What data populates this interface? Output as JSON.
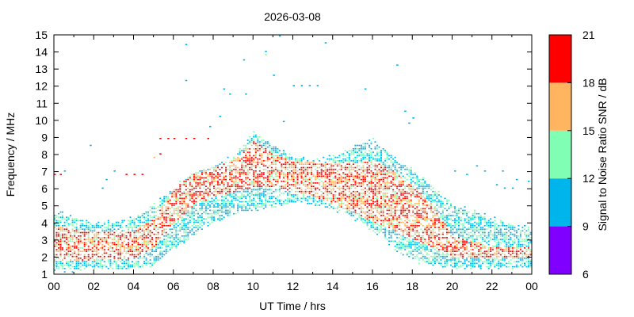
{
  "chart_data": {
    "type": "heatmap",
    "title": "2026-03-08",
    "xlabel": "UT Time / hrs",
    "ylabel": "Frequency / MHz",
    "xlim": [
      0,
      24
    ],
    "ylim": [
      1,
      15
    ],
    "x_ticks": [
      "00",
      "02",
      "04",
      "06",
      "08",
      "10",
      "12",
      "14",
      "16",
      "18",
      "20",
      "22",
      "00"
    ],
    "y_ticks": [
      "1",
      "2",
      "3",
      "4",
      "5",
      "6",
      "7",
      "8",
      "9",
      "10",
      "11",
      "12",
      "13",
      "14",
      "15"
    ],
    "colorbar": {
      "label": "Signal to Noise Ratio SNR / dB",
      "ticks": [
        "6",
        "9",
        "12",
        "15",
        "18",
        "21"
      ],
      "bands": [
        {
          "from": 6,
          "to": 9,
          "color": "#8000ff"
        },
        {
          "from": 9,
          "to": 12,
          "color": "#00b4ec"
        },
        {
          "from": 12,
          "to": 15,
          "color": "#80ffb4"
        },
        {
          "from": 15,
          "to": 18,
          "color": "#ffb460"
        },
        {
          "from": 18,
          "to": 21,
          "color": "#ff0000"
        }
      ]
    },
    "lower_envelope_mhz": [
      [
        0,
        1.2
      ],
      [
        2,
        1.3
      ],
      [
        4,
        1.3
      ],
      [
        5,
        1.6
      ],
      [
        6,
        2.5
      ],
      [
        7,
        3.3
      ],
      [
        8,
        4.0
      ],
      [
        9,
        4.5
      ],
      [
        10,
        4.8
      ],
      [
        11,
        5.0
      ],
      [
        12,
        5.2
      ],
      [
        13,
        5.0
      ],
      [
        14,
        4.8
      ],
      [
        15,
        4.3
      ],
      [
        16,
        3.6
      ],
      [
        17,
        2.6
      ],
      [
        18,
        1.8
      ],
      [
        20,
        1.4
      ],
      [
        22,
        1.4
      ],
      [
        24,
        1.4
      ]
    ],
    "upper_envelope_mhz": [
      [
        0,
        4.6
      ],
      [
        2,
        3.9
      ],
      [
        4,
        4.2
      ],
      [
        5,
        5.0
      ],
      [
        6,
        6.0
      ],
      [
        7,
        6.9
      ],
      [
        8,
        7.3
      ],
      [
        9,
        7.8
      ],
      [
        10,
        9.2
      ],
      [
        11,
        8.5
      ],
      [
        12,
        7.8
      ],
      [
        13,
        7.6
      ],
      [
        14,
        7.8
      ],
      [
        15,
        8.4
      ],
      [
        16,
        8.8
      ],
      [
        17,
        7.8
      ],
      [
        18,
        7.0
      ],
      [
        19,
        6.0
      ],
      [
        20,
        5.0
      ],
      [
        22,
        4.2
      ],
      [
        24,
        3.6
      ]
    ],
    "max_snr_band_mhz": [
      [
        0,
        1.8,
        3.8
      ],
      [
        2,
        1.8,
        3.4
      ],
      [
        4,
        1.9,
        3.5
      ],
      [
        5,
        2.5,
        4.2
      ],
      [
        6,
        4.0,
        6.0
      ],
      [
        7,
        5.0,
        6.8
      ],
      [
        8,
        5.5,
        7.2
      ],
      [
        9,
        5.8,
        7.6
      ],
      [
        10,
        6.0,
        8.8
      ],
      [
        11,
        6.0,
        8.0
      ],
      [
        12,
        5.8,
        7.6
      ],
      [
        13,
        5.5,
        7.5
      ],
      [
        14,
        5.0,
        7.4
      ],
      [
        15,
        4.6,
        7.4
      ],
      [
        16,
        4.0,
        7.6
      ],
      [
        17,
        3.5,
        7.0
      ],
      [
        18,
        3.0,
        6.2
      ],
      [
        19,
        2.5,
        5.0
      ],
      [
        20,
        2.0,
        3.2
      ],
      [
        22,
        2.0,
        2.6
      ],
      [
        24,
        2.0,
        2.6
      ]
    ],
    "scatter_points": [
      [
        0.0,
        6.8,
        18
      ],
      [
        0.3,
        6.8,
        18
      ],
      [
        0.5,
        7.0,
        10
      ],
      [
        1.8,
        8.5,
        10
      ],
      [
        2.4,
        6.0,
        10
      ],
      [
        2.6,
        6.5,
        10
      ],
      [
        3.0,
        7.0,
        10
      ],
      [
        3.6,
        6.8,
        18
      ],
      [
        4.0,
        6.8,
        18
      ],
      [
        4.4,
        6.8,
        18
      ],
      [
        5.0,
        7.8,
        15
      ],
      [
        5.3,
        8.0,
        18
      ],
      [
        5.3,
        8.9,
        18
      ],
      [
        5.7,
        8.9,
        18
      ],
      [
        6.0,
        8.9,
        18
      ],
      [
        6.6,
        8.9,
        18
      ],
      [
        7.0,
        8.9,
        18
      ],
      [
        7.7,
        8.9,
        18
      ],
      [
        6.6,
        14.4,
        10
      ],
      [
        6.6,
        12.3,
        10
      ],
      [
        8.5,
        11.8,
        10
      ],
      [
        8.8,
        11.5,
        10
      ],
      [
        9.5,
        13.5,
        10
      ],
      [
        9.6,
        11.5,
        10
      ],
      [
        10.6,
        13.8,
        13
      ],
      [
        10.6,
        14.0,
        10
      ],
      [
        11.3,
        14.9,
        10
      ],
      [
        11.0,
        12.6,
        10
      ],
      [
        12.0,
        12.0,
        10
      ],
      [
        12.4,
        12.0,
        10
      ],
      [
        12.8,
        12.0,
        10
      ],
      [
        13.2,
        12.0,
        10
      ],
      [
        13.6,
        14.5,
        10
      ],
      [
        15.6,
        11.8,
        10
      ],
      [
        17.2,
        13.2,
        10
      ],
      [
        17.6,
        10.5,
        10
      ],
      [
        17.8,
        9.8,
        10
      ],
      [
        18.0,
        10.1,
        10
      ],
      [
        7.8,
        9.6,
        10
      ],
      [
        8.3,
        10.2,
        10
      ],
      [
        11.5,
        9.9,
        10
      ],
      [
        20.1,
        7.0,
        10
      ],
      [
        20.7,
        6.8,
        10
      ],
      [
        21.2,
        7.3,
        10
      ],
      [
        21.6,
        7.0,
        10
      ],
      [
        22.5,
        7.0,
        10
      ],
      [
        23.2,
        6.5,
        10
      ],
      [
        23.8,
        6.4,
        10
      ],
      [
        22.2,
        6.2,
        10
      ],
      [
        22.6,
        6.0,
        10
      ],
      [
        23.0,
        6.0,
        10
      ],
      [
        20.7,
        3.0,
        10
      ],
      [
        20.8,
        2.8,
        10
      ]
    ]
  }
}
